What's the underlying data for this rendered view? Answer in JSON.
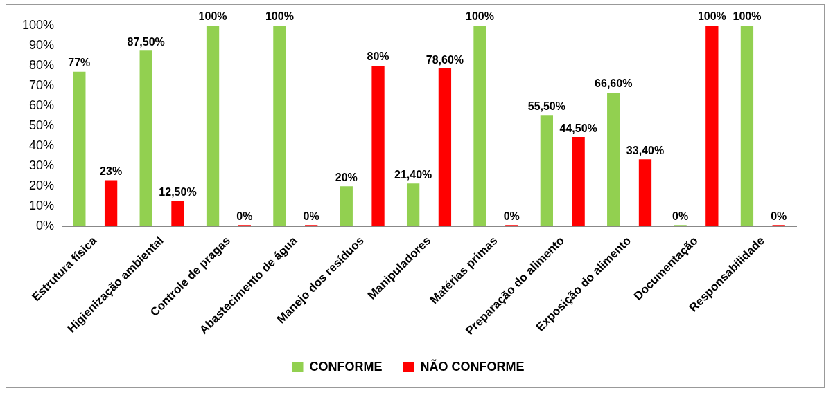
{
  "chart_data": {
    "type": "bar",
    "categories": [
      "Estrutura física",
      "Higienização ambiental",
      "Controle de pragas",
      "Abastecimento de água",
      "Manejo dos resíduos",
      "Manipuladores",
      "Matérias primas",
      "Preparação do alimento",
      "Exposição do alimento",
      "Documentação",
      "Responsabilidade"
    ],
    "series": [
      {
        "name": "CONFORME",
        "color": "#92d050",
        "values": [
          77,
          87.5,
          100,
          100,
          20,
          21.4,
          100,
          55.5,
          66.6,
          0,
          100
        ],
        "value_labels": [
          "77%",
          "87,50%",
          "100%",
          "100%",
          "20%",
          "21,40%",
          "100%",
          "55,50%",
          "66,60%",
          "0%",
          "100%"
        ]
      },
      {
        "name": "NÃO CONFORME",
        "color": "#ff0000",
        "values": [
          23,
          12.5,
          0,
          0,
          80,
          78.6,
          0,
          44.5,
          33.4,
          100,
          0
        ],
        "value_labels": [
          "23%",
          "12,50%",
          "0%",
          "0%",
          "80%",
          "78,60%",
          "0%",
          "44,50%",
          "33,40%",
          "100%",
          "0%"
        ]
      }
    ],
    "ylim": [
      0,
      100
    ],
    "yticks": [
      {
        "value": 0,
        "label": "0%"
      },
      {
        "value": 10,
        "label": "10%"
      },
      {
        "value": 20,
        "label": "20%"
      },
      {
        "value": 30,
        "label": "30%"
      },
      {
        "value": 40,
        "label": "40%"
      },
      {
        "value": 50,
        "label": "50%"
      },
      {
        "value": 60,
        "label": "60%"
      },
      {
        "value": 70,
        "label": "70%"
      },
      {
        "value": 80,
        "label": "80%"
      },
      {
        "value": 90,
        "label": "90%"
      },
      {
        "value": 100,
        "label": "100%"
      }
    ],
    "grid": false,
    "legend": "bottom"
  }
}
